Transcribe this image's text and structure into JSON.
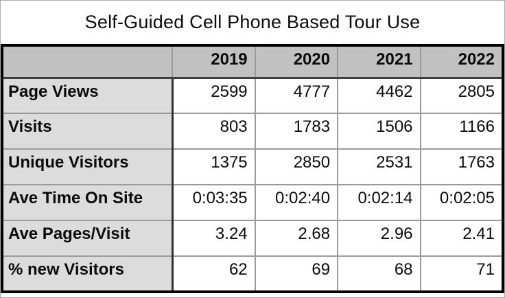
{
  "chart_data": {
    "type": "table",
    "title": "Self-Guided Cell Phone Based Tour Use",
    "columns": [
      "2019",
      "2020",
      "2021",
      "2022"
    ],
    "rows": [
      {
        "label": "Page Views",
        "values": [
          "2599",
          "4777",
          "4462",
          "2805"
        ]
      },
      {
        "label": "Visits",
        "values": [
          "803",
          "1783",
          "1506",
          "1166"
        ]
      },
      {
        "label": "Unique Visitors",
        "values": [
          "1375",
          "2850",
          "2531",
          "1763"
        ]
      },
      {
        "label": "Ave Time On Site",
        "values": [
          "0:03:35",
          "0:02:40",
          "0:02:14",
          "0:02:05"
        ]
      },
      {
        "label": "Ave Pages/Visit",
        "values": [
          "3.24",
          "2.68",
          "2.96",
          "2.41"
        ]
      },
      {
        "label": "% new Visitors",
        "values": [
          "62",
          "69",
          "68",
          "71"
        ]
      }
    ]
  },
  "colors": {
    "header_bg": "#c1c1c1",
    "label_column_bg": "#dcdcdc",
    "cell_bg": "#ffffff",
    "outer_table_border": "#000000",
    "gridline": "#9b9b9b",
    "frame_border": "#ababab",
    "text": "#0b0b0b"
  }
}
